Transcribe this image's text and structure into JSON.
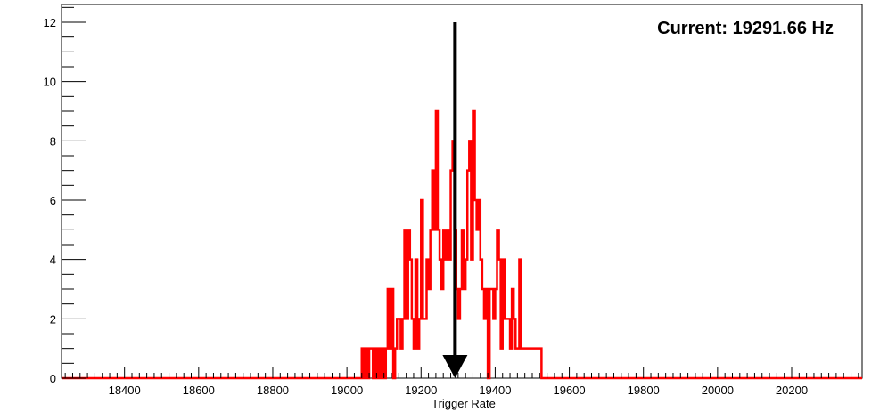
{
  "chart_data": {
    "type": "histogram",
    "title": "",
    "xlabel": "Trigger Rate",
    "ylabel": "",
    "xlim": [
      18230,
      20390
    ],
    "ylim": [
      0,
      12.6
    ],
    "x_ticks": [
      18400,
      18600,
      18800,
      19000,
      19200,
      19400,
      19600,
      19800,
      20000,
      20200
    ],
    "y_ticks": [
      0,
      2,
      4,
      6,
      8,
      10,
      12
    ],
    "bin_width": 5,
    "grid": false,
    "legend": "none",
    "series": [
      {
        "color": "#ff0000",
        "bins": [
          [
            19040,
            1
          ],
          [
            19045,
            0
          ],
          [
            19050,
            1
          ],
          [
            19055,
            0
          ],
          [
            19060,
            1
          ],
          [
            19065,
            1
          ],
          [
            19070,
            0
          ],
          [
            19075,
            1
          ],
          [
            19080,
            0
          ],
          [
            19085,
            1
          ],
          [
            19090,
            0
          ],
          [
            19095,
            1
          ],
          [
            19100,
            0
          ],
          [
            19105,
            1
          ],
          [
            19110,
            3
          ],
          [
            19115,
            1
          ],
          [
            19120,
            3
          ],
          [
            19125,
            0
          ],
          [
            19130,
            1
          ],
          [
            19135,
            2
          ],
          [
            19140,
            2
          ],
          [
            19145,
            1
          ],
          [
            19150,
            2
          ],
          [
            19155,
            5
          ],
          [
            19160,
            2
          ],
          [
            19165,
            5
          ],
          [
            19170,
            4
          ],
          [
            19175,
            2
          ],
          [
            19180,
            1
          ],
          [
            19185,
            4
          ],
          [
            19190,
            1
          ],
          [
            19195,
            2
          ],
          [
            19200,
            6
          ],
          [
            19205,
            2
          ],
          [
            19210,
            2
          ],
          [
            19215,
            4
          ],
          [
            19220,
            3
          ],
          [
            19225,
            5
          ],
          [
            19230,
            7
          ],
          [
            19235,
            5
          ],
          [
            19240,
            9
          ],
          [
            19245,
            5
          ],
          [
            19250,
            4
          ],
          [
            19255,
            3
          ],
          [
            19260,
            5
          ],
          [
            19265,
            4
          ],
          [
            19270,
            5
          ],
          [
            19275,
            4
          ],
          [
            19280,
            7
          ],
          [
            19285,
            8
          ],
          [
            19290,
            5
          ],
          [
            19295,
            3
          ],
          [
            19300,
            2
          ],
          [
            19305,
            3
          ],
          [
            19310,
            5
          ],
          [
            19315,
            3
          ],
          [
            19320,
            4
          ],
          [
            19325,
            7
          ],
          [
            19330,
            8
          ],
          [
            19335,
            4
          ],
          [
            19340,
            9
          ],
          [
            19345,
            6
          ],
          [
            19350,
            5
          ],
          [
            19355,
            6
          ],
          [
            19360,
            4
          ],
          [
            19365,
            3
          ],
          [
            19370,
            2
          ],
          [
            19375,
            3
          ],
          [
            19380,
            0
          ],
          [
            19385,
            3
          ],
          [
            19390,
            3
          ],
          [
            19395,
            2
          ],
          [
            19400,
            3
          ],
          [
            19405,
            5
          ],
          [
            19410,
            4
          ],
          [
            19415,
            1
          ],
          [
            19420,
            4
          ],
          [
            19425,
            2
          ],
          [
            19430,
            2
          ],
          [
            19435,
            2
          ],
          [
            19440,
            1
          ],
          [
            19445,
            3
          ],
          [
            19450,
            2
          ],
          [
            19455,
            1
          ],
          [
            19460,
            1
          ],
          [
            19465,
            4
          ],
          [
            19470,
            1
          ],
          [
            19475,
            1
          ],
          [
            19480,
            1
          ],
          [
            19485,
            1
          ],
          [
            19490,
            1
          ],
          [
            19495,
            1
          ],
          [
            19500,
            1
          ],
          [
            19505,
            1
          ],
          [
            19510,
            1
          ],
          [
            19515,
            1
          ],
          [
            19520,
            1
          ],
          [
            19525,
            0
          ]
        ]
      }
    ],
    "annotation": {
      "text": "Current: 19291.66 Hz",
      "arrow_x": 19291.66,
      "arrow_from_y": 12,
      "arrow_to_y": 0
    }
  }
}
